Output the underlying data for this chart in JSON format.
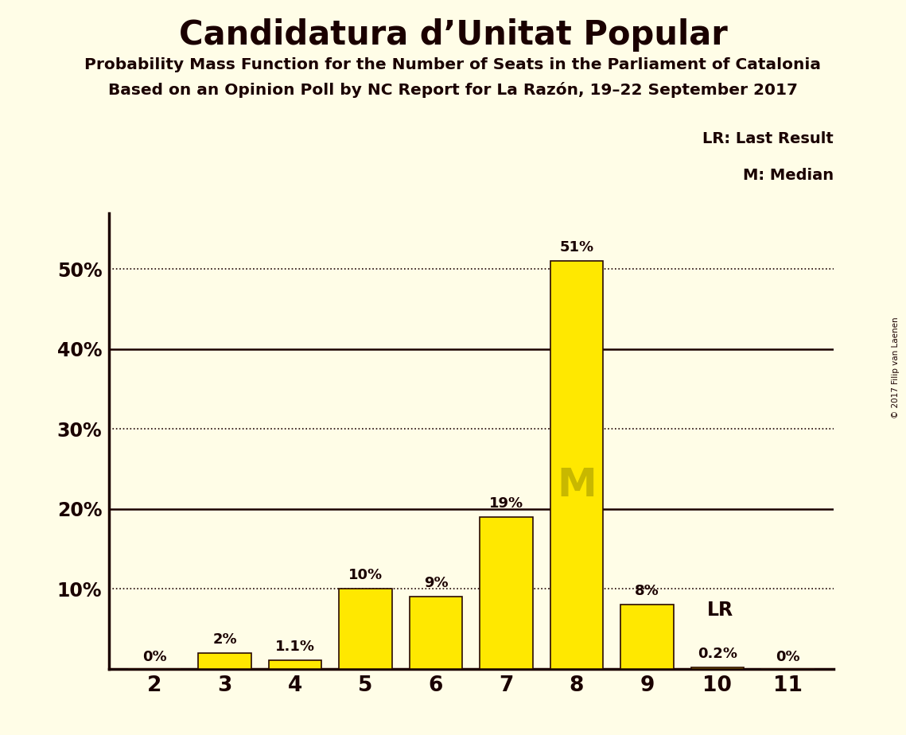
{
  "title": "Candidatura d’Unitat Popular",
  "subtitle1": "Probability Mass Function for the Number of Seats in the Parliament of Catalonia",
  "subtitle2": "Based on an Opinion Poll by NC Report for La Razón, 19–22 September 2017",
  "copyright": "© 2017 Filip van Laenen",
  "categories": [
    2,
    3,
    4,
    5,
    6,
    7,
    8,
    9,
    10,
    11
  ],
  "values": [
    0.0,
    2.0,
    1.1,
    10.0,
    9.0,
    19.0,
    51.0,
    8.0,
    0.2,
    0.0
  ],
  "bar_color": "#FFE800",
  "bar_edge_color": "#2a0a00",
  "background_color": "#FFFDE7",
  "text_color": "#1a0000",
  "yticks": [
    0,
    10,
    20,
    30,
    40,
    50
  ],
  "ytick_labels": [
    "",
    "10%",
    "20%",
    "30%",
    "40%",
    "50%"
  ],
  "ylim": [
    0,
    57
  ],
  "solid_lines": [
    20,
    40
  ],
  "dotted_lines": [
    10,
    30,
    50
  ],
  "bar_labels": [
    "0%",
    "2%",
    "1.1%",
    "10%",
    "9%",
    "19%",
    "51%",
    "8%",
    "0.2%",
    "0%"
  ],
  "median_cat": 8,
  "lr_cat": 10,
  "lr_value": 10,
  "lr_label": "LR",
  "lr_legend": "LR: Last Result",
  "median_legend": "M: Median",
  "median_label": "M"
}
